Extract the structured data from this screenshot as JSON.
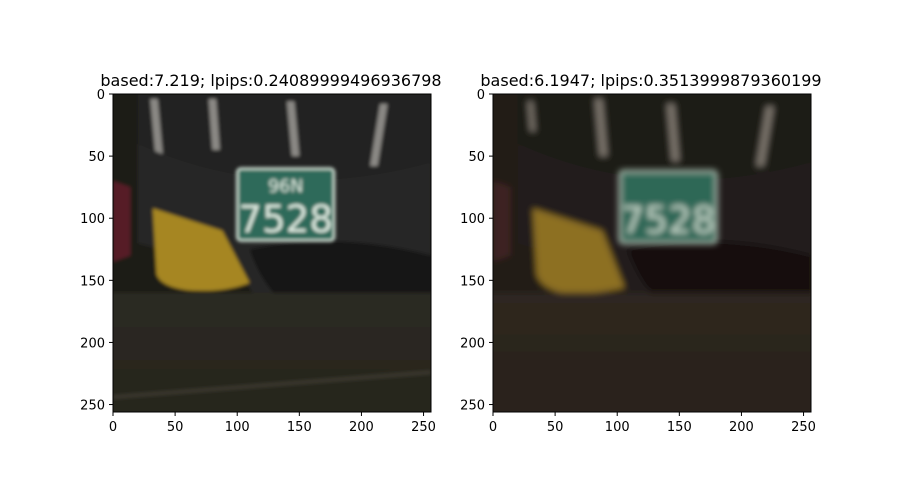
{
  "chart_data": [
    {
      "type": "image",
      "title": "based:7.219; lpips:0.24089999496936798",
      "xlim": [
        0,
        256
      ],
      "ylim": [
        256,
        0
      ],
      "xticks": [
        0,
        50,
        100,
        150,
        200,
        250
      ],
      "yticks": [
        0,
        50,
        100,
        150,
        200,
        250
      ],
      "plate": {
        "top_text": "96N",
        "number": "7528"
      }
    },
    {
      "type": "image",
      "title": "based:6.1947; lpips:0.3513999879360199",
      "xlim": [
        0,
        256
      ],
      "ylim": [
        256,
        0
      ],
      "xticks": [
        0,
        50,
        100,
        150,
        200,
        250
      ],
      "yticks": [
        0,
        50,
        100,
        150,
        200,
        250
      ],
      "plate": {
        "top_text": "",
        "number": "7528"
      }
    }
  ],
  "colors": {
    "plate_green": "#2e6a5a",
    "plate_text": "#d8e6dc",
    "bollard_yellow": "#a98a1f",
    "axis": "#000000"
  }
}
